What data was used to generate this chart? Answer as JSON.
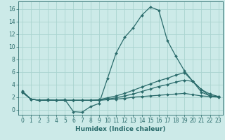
{
  "title": "",
  "xlabel": "Humidex (Indice chaleur)",
  "ylabel": "",
  "background_color": "#cceae8",
  "grid_color": "#aad4d0",
  "line_color": "#2a6b6b",
  "xlim": [
    -0.5,
    23.5
  ],
  "ylim": [
    -0.8,
    17.2
  ],
  "xticks": [
    0,
    1,
    2,
    3,
    4,
    5,
    6,
    7,
    8,
    9,
    10,
    11,
    12,
    13,
    14,
    15,
    16,
    17,
    18,
    19,
    20,
    21,
    22,
    23
  ],
  "yticks": [
    0,
    2,
    4,
    6,
    8,
    10,
    12,
    14,
    16
  ],
  "lines": [
    {
      "x": [
        0,
        1,
        2,
        3,
        4,
        5,
        6,
        7,
        8,
        9,
        10,
        11,
        12,
        13,
        14,
        15,
        16,
        17,
        18,
        19,
        20,
        21,
        22,
        23
      ],
      "y": [
        3.0,
        1.7,
        1.5,
        1.6,
        1.5,
        1.6,
        -0.3,
        -0.4,
        0.5,
        1.0,
        5.0,
        9.0,
        11.5,
        13.0,
        15.0,
        16.3,
        15.8,
        11.0,
        8.5,
        6.2,
        4.5,
        3.2,
        2.5,
        2.1
      ]
    },
    {
      "x": [
        0,
        1,
        2,
        3,
        4,
        5,
        6,
        7,
        8,
        9,
        10,
        11,
        12,
        13,
        14,
        15,
        16,
        17,
        18,
        19,
        20,
        21,
        22,
        23
      ],
      "y": [
        2.8,
        1.7,
        1.5,
        1.6,
        1.5,
        1.5,
        1.5,
        1.5,
        1.5,
        1.6,
        1.9,
        2.2,
        2.6,
        3.1,
        3.6,
        4.1,
        4.6,
        5.0,
        5.5,
        5.9,
        4.5,
        2.8,
        2.2,
        2.1
      ]
    },
    {
      "x": [
        0,
        1,
        2,
        3,
        4,
        5,
        6,
        7,
        8,
        9,
        10,
        11,
        12,
        13,
        14,
        15,
        16,
        17,
        18,
        19,
        20,
        21,
        22,
        23
      ],
      "y": [
        2.8,
        1.7,
        1.5,
        1.5,
        1.5,
        1.5,
        1.5,
        1.5,
        1.5,
        1.5,
        1.7,
        1.9,
        2.2,
        2.5,
        2.9,
        3.3,
        3.7,
        4.0,
        4.4,
        4.7,
        4.5,
        3.2,
        2.2,
        2.1
      ]
    },
    {
      "x": [
        0,
        1,
        2,
        3,
        4,
        5,
        6,
        7,
        8,
        9,
        10,
        11,
        12,
        13,
        14,
        15,
        16,
        17,
        18,
        19,
        20,
        21,
        22,
        23
      ],
      "y": [
        2.8,
        1.7,
        1.5,
        1.5,
        1.5,
        1.5,
        1.5,
        1.5,
        1.5,
        1.5,
        1.6,
        1.7,
        1.8,
        2.0,
        2.1,
        2.2,
        2.3,
        2.4,
        2.5,
        2.6,
        2.4,
        2.2,
        2.1,
        2.0
      ]
    }
  ]
}
